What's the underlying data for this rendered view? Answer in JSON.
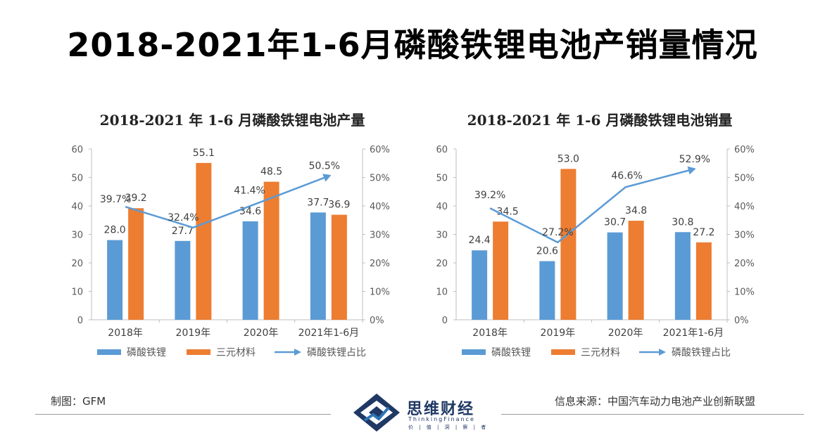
{
  "page": {
    "title": "2018-2021年1-6月磷酸铁锂电池产销量情况"
  },
  "chart_data": [
    {
      "type": "bar",
      "title": "2018-2021 年 1-6 月磷酸铁锂电池产量",
      "categories": [
        "2018年",
        "2019年",
        "2020年",
        "2021年1-6月"
      ],
      "series": [
        {
          "name": "磷酸铁锂",
          "kind": "bar",
          "axis": "left",
          "color": "#5b9bd5",
          "values": [
            28.0,
            27.7,
            34.6,
            37.7
          ],
          "labels": [
            "28.0",
            "27.7",
            "34.6",
            "37.7"
          ]
        },
        {
          "name": "三元材料",
          "kind": "bar",
          "axis": "left",
          "color": "#ed7d31",
          "values": [
            39.2,
            55.1,
            48.5,
            36.9
          ],
          "labels": [
            "39.2",
            "55.1",
            "48.5",
            "36.9"
          ]
        },
        {
          "name": "磷酸铁锂占比",
          "kind": "line",
          "axis": "right",
          "color": "#5b9bd5",
          "values": [
            39.7,
            32.4,
            41.4,
            50.5
          ],
          "labels": [
            "39.7%",
            "32.4%",
            "41.4%",
            "50.5%"
          ]
        }
      ],
      "ylim": [
        0,
        60
      ],
      "yticks": [
        0,
        10,
        20,
        30,
        40,
        50,
        60
      ],
      "ylim2": [
        0,
        60
      ],
      "yticks2": [
        "0%",
        "10%",
        "20%",
        "30%",
        "40%",
        "50%",
        "60%"
      ],
      "legend_position": "bottom"
    },
    {
      "type": "bar",
      "title": "2018-2021 年 1-6 月磷酸铁锂电池销量",
      "categories": [
        "2018年",
        "2019年",
        "2020年",
        "2021年1-6月"
      ],
      "series": [
        {
          "name": "磷酸铁锂",
          "kind": "bar",
          "axis": "left",
          "color": "#5b9bd5",
          "values": [
            24.4,
            20.6,
            30.7,
            30.8
          ],
          "labels": [
            "24.4",
            "20.6",
            "30.7",
            "30.8"
          ]
        },
        {
          "name": "三元材料",
          "kind": "bar",
          "axis": "left",
          "color": "#ed7d31",
          "values": [
            34.5,
            53.0,
            34.8,
            27.2
          ],
          "labels": [
            "34.5",
            "53.0",
            "34.8",
            "27.2"
          ]
        },
        {
          "name": "磷酸铁锂占比",
          "kind": "line",
          "axis": "right",
          "color": "#5b9bd5",
          "values": [
            39.2,
            27.2,
            46.6,
            52.9
          ],
          "labels": [
            "39.2%",
            "27.2%",
            "46.6%",
            "52.9%"
          ]
        }
      ],
      "ylim": [
        0,
        60
      ],
      "yticks": [
        0,
        10,
        20,
        30,
        40,
        50,
        60
      ],
      "ylim2": [
        0,
        60
      ],
      "yticks2": [
        "0%",
        "10%",
        "20%",
        "30%",
        "40%",
        "50%",
        "60%"
      ],
      "legend_position": "bottom"
    }
  ],
  "footer": {
    "credit": "制图：GFM",
    "source": "信息来源：中国汽车动力电池产业创新联盟"
  },
  "logo": {
    "name": "思维财经",
    "subtitle": "ThinkingFinance",
    "slogan": "价 | 值 | 洞 | 察 | 者"
  }
}
